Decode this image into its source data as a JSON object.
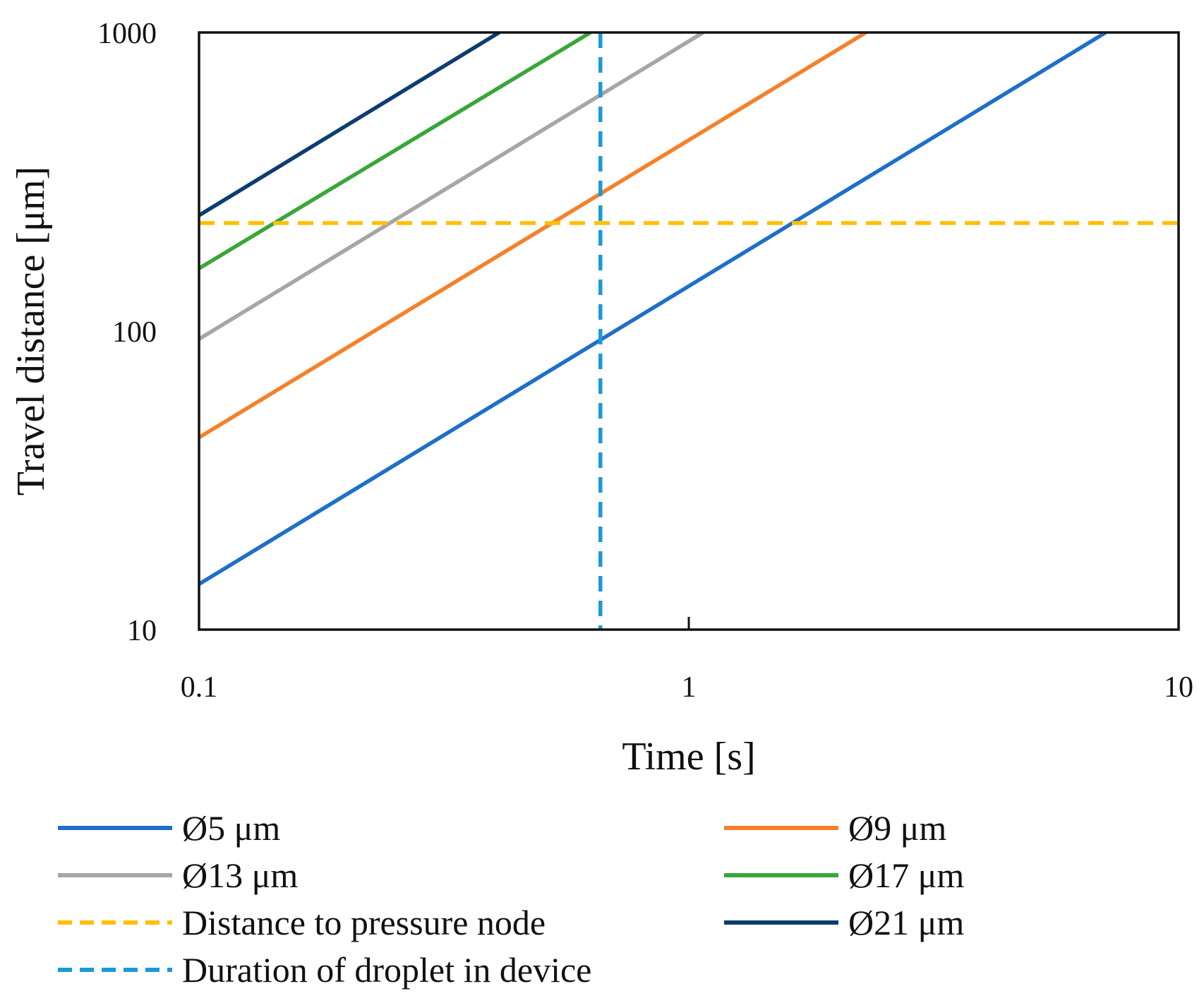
{
  "chart_data": {
    "type": "line",
    "title": "",
    "xlabel": "Time [s]",
    "ylabel": "Travel distance [μm]",
    "xscale": "log",
    "yscale": "log",
    "xlim": [
      0.1,
      10
    ],
    "ylim": [
      10,
      1000
    ],
    "xticks": [
      {
        "value": 0.1,
        "label": "0.1"
      },
      {
        "value": 1,
        "label": "1"
      },
      {
        "value": 10,
        "label": "10"
      }
    ],
    "yticks": [
      {
        "value": 10,
        "label": "10"
      },
      {
        "value": 100,
        "label": "100"
      },
      {
        "value": 1000,
        "label": "1000"
      }
    ],
    "grid": false,
    "legend_position": "bottom",
    "series": [
      {
        "name": "Ø5 μm",
        "color": "#1f6fc9",
        "style": "solid",
        "x": [
          0.1,
          7.1
        ],
        "y": [
          14.2,
          1000
        ]
      },
      {
        "name": "Ø9 μm",
        "color": "#f5812a",
        "style": "solid",
        "x": [
          0.1,
          2.3
        ],
        "y": [
          44,
          1000
        ]
      },
      {
        "name": "Ø13 μm",
        "color": "#a6a6a6",
        "style": "solid",
        "x": [
          0.1,
          1.07
        ],
        "y": [
          94,
          1000
        ]
      },
      {
        "name": "Ø17 μm",
        "color": "#3aa63a",
        "style": "solid",
        "x": [
          0.1,
          0.63
        ],
        "y": [
          162,
          1000
        ]
      },
      {
        "name": "Distance to pressure node",
        "color": "#ffc000",
        "style": "dashed",
        "orientation": "horizontal",
        "value": 230
      },
      {
        "name": "Ø21 μm",
        "color": "#0d3d70",
        "style": "solid",
        "x": [
          0.1,
          0.41
        ],
        "y": [
          244,
          1000
        ]
      },
      {
        "name": "Duration of droplet in device",
        "color": "#1a9ad6",
        "style": "dashed",
        "orientation": "vertical",
        "value": 0.66
      }
    ]
  }
}
